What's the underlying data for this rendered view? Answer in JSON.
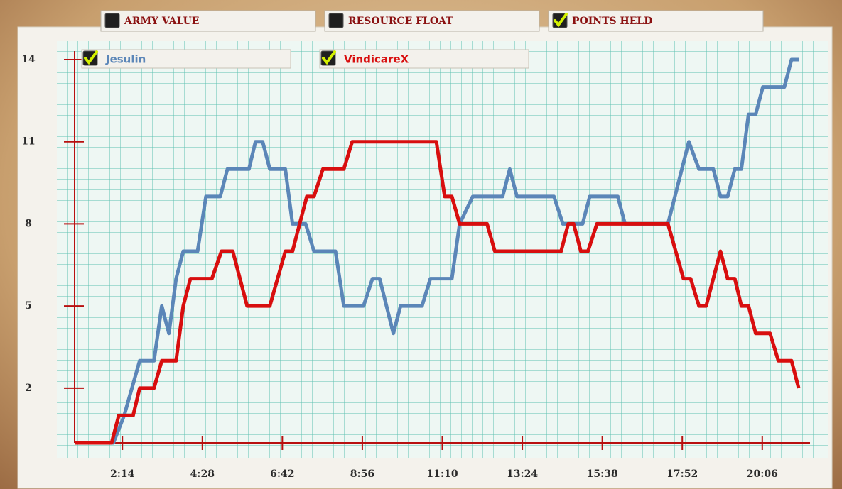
{
  "chart_data": {
    "type": "line",
    "toggles": [
      {
        "label": "ARMY VALUE",
        "checked": false
      },
      {
        "label": "RESOURCE FLOAT",
        "checked": false
      },
      {
        "label": "POINTS HELD",
        "checked": true
      }
    ],
    "series": [
      {
        "name": "Jesulin",
        "color": "#5b86b8",
        "checked": true,
        "x": [
          54,
          119,
          137,
          163,
          187,
          200,
          212,
          224,
          236,
          260,
          274,
          298,
          310,
          346,
          357,
          369,
          381,
          407,
          419,
          441,
          455,
          491,
          505,
          538,
          553,
          565,
          588,
          600,
          636,
          650,
          686,
          699,
          721,
          771,
          783,
          795,
          857,
          872,
          905,
          917,
          964,
          976,
          1048,
          1083,
          1100,
          1124,
          1136,
          1148,
          1160,
          1171,
          1183,
          1195,
          1207,
          1243,
          1255,
          1267
        ],
        "values": [
          0,
          0,
          1,
          3,
          3,
          5,
          4,
          6,
          7,
          7,
          9,
          9,
          10,
          10,
          11,
          11,
          10,
          10,
          8,
          8,
          7,
          7,
          5,
          5,
          6,
          6,
          4,
          5,
          5,
          6,
          6,
          8,
          9,
          9,
          10,
          9,
          9,
          8,
          8,
          9,
          9,
          8,
          8,
          11,
          10,
          10,
          9,
          9,
          10,
          10,
          12,
          12,
          13,
          13,
          14,
          14
        ]
      },
      {
        "name": "VindicareX",
        "color": "#d80e0e",
        "checked": true,
        "x": [
          54,
          116,
          128,
          152,
          163,
          187,
          200,
          224,
          236,
          248,
          284,
          300,
          319,
          343,
          381,
          407,
          419,
          443,
          455,
          470,
          505,
          519,
          660,
          674,
          686,
          699,
          745,
          758,
          869,
          881,
          890,
          902,
          914,
          929,
          1048,
          1074,
          1086,
          1100,
          1112,
          1136,
          1148,
          1160,
          1171,
          1183,
          1195,
          1219,
          1233,
          1255,
          1267
        ],
        "values": [
          0,
          0,
          1,
          1,
          2,
          2,
          3,
          3,
          5,
          6,
          6,
          7,
          7,
          5,
          5,
          7,
          7,
          9,
          9,
          10,
          10,
          11,
          11,
          9,
          9,
          8,
          8,
          7,
          7,
          8,
          8,
          7,
          7,
          8,
          8,
          6,
          6,
          5,
          5,
          7,
          6,
          6,
          5,
          5,
          4,
          4,
          3,
          3,
          2
        ]
      }
    ],
    "xlim": [
      54,
      1286
    ],
    "xticks": [
      {
        "value": 134,
        "label": "2:14"
      },
      {
        "value": 268,
        "label": "4:28"
      },
      {
        "value": 402,
        "label": "6:42"
      },
      {
        "value": 536,
        "label": "8:56"
      },
      {
        "value": 670,
        "label": "11:10"
      },
      {
        "value": 804,
        "label": "13:24"
      },
      {
        "value": 938,
        "label": "15:38"
      },
      {
        "value": 1072,
        "label": "17:52"
      },
      {
        "value": 1206,
        "label": "20:06"
      }
    ],
    "ylim": [
      0,
      14
    ],
    "yticks": [
      2,
      5,
      8,
      11,
      14
    ],
    "grid": true
  }
}
